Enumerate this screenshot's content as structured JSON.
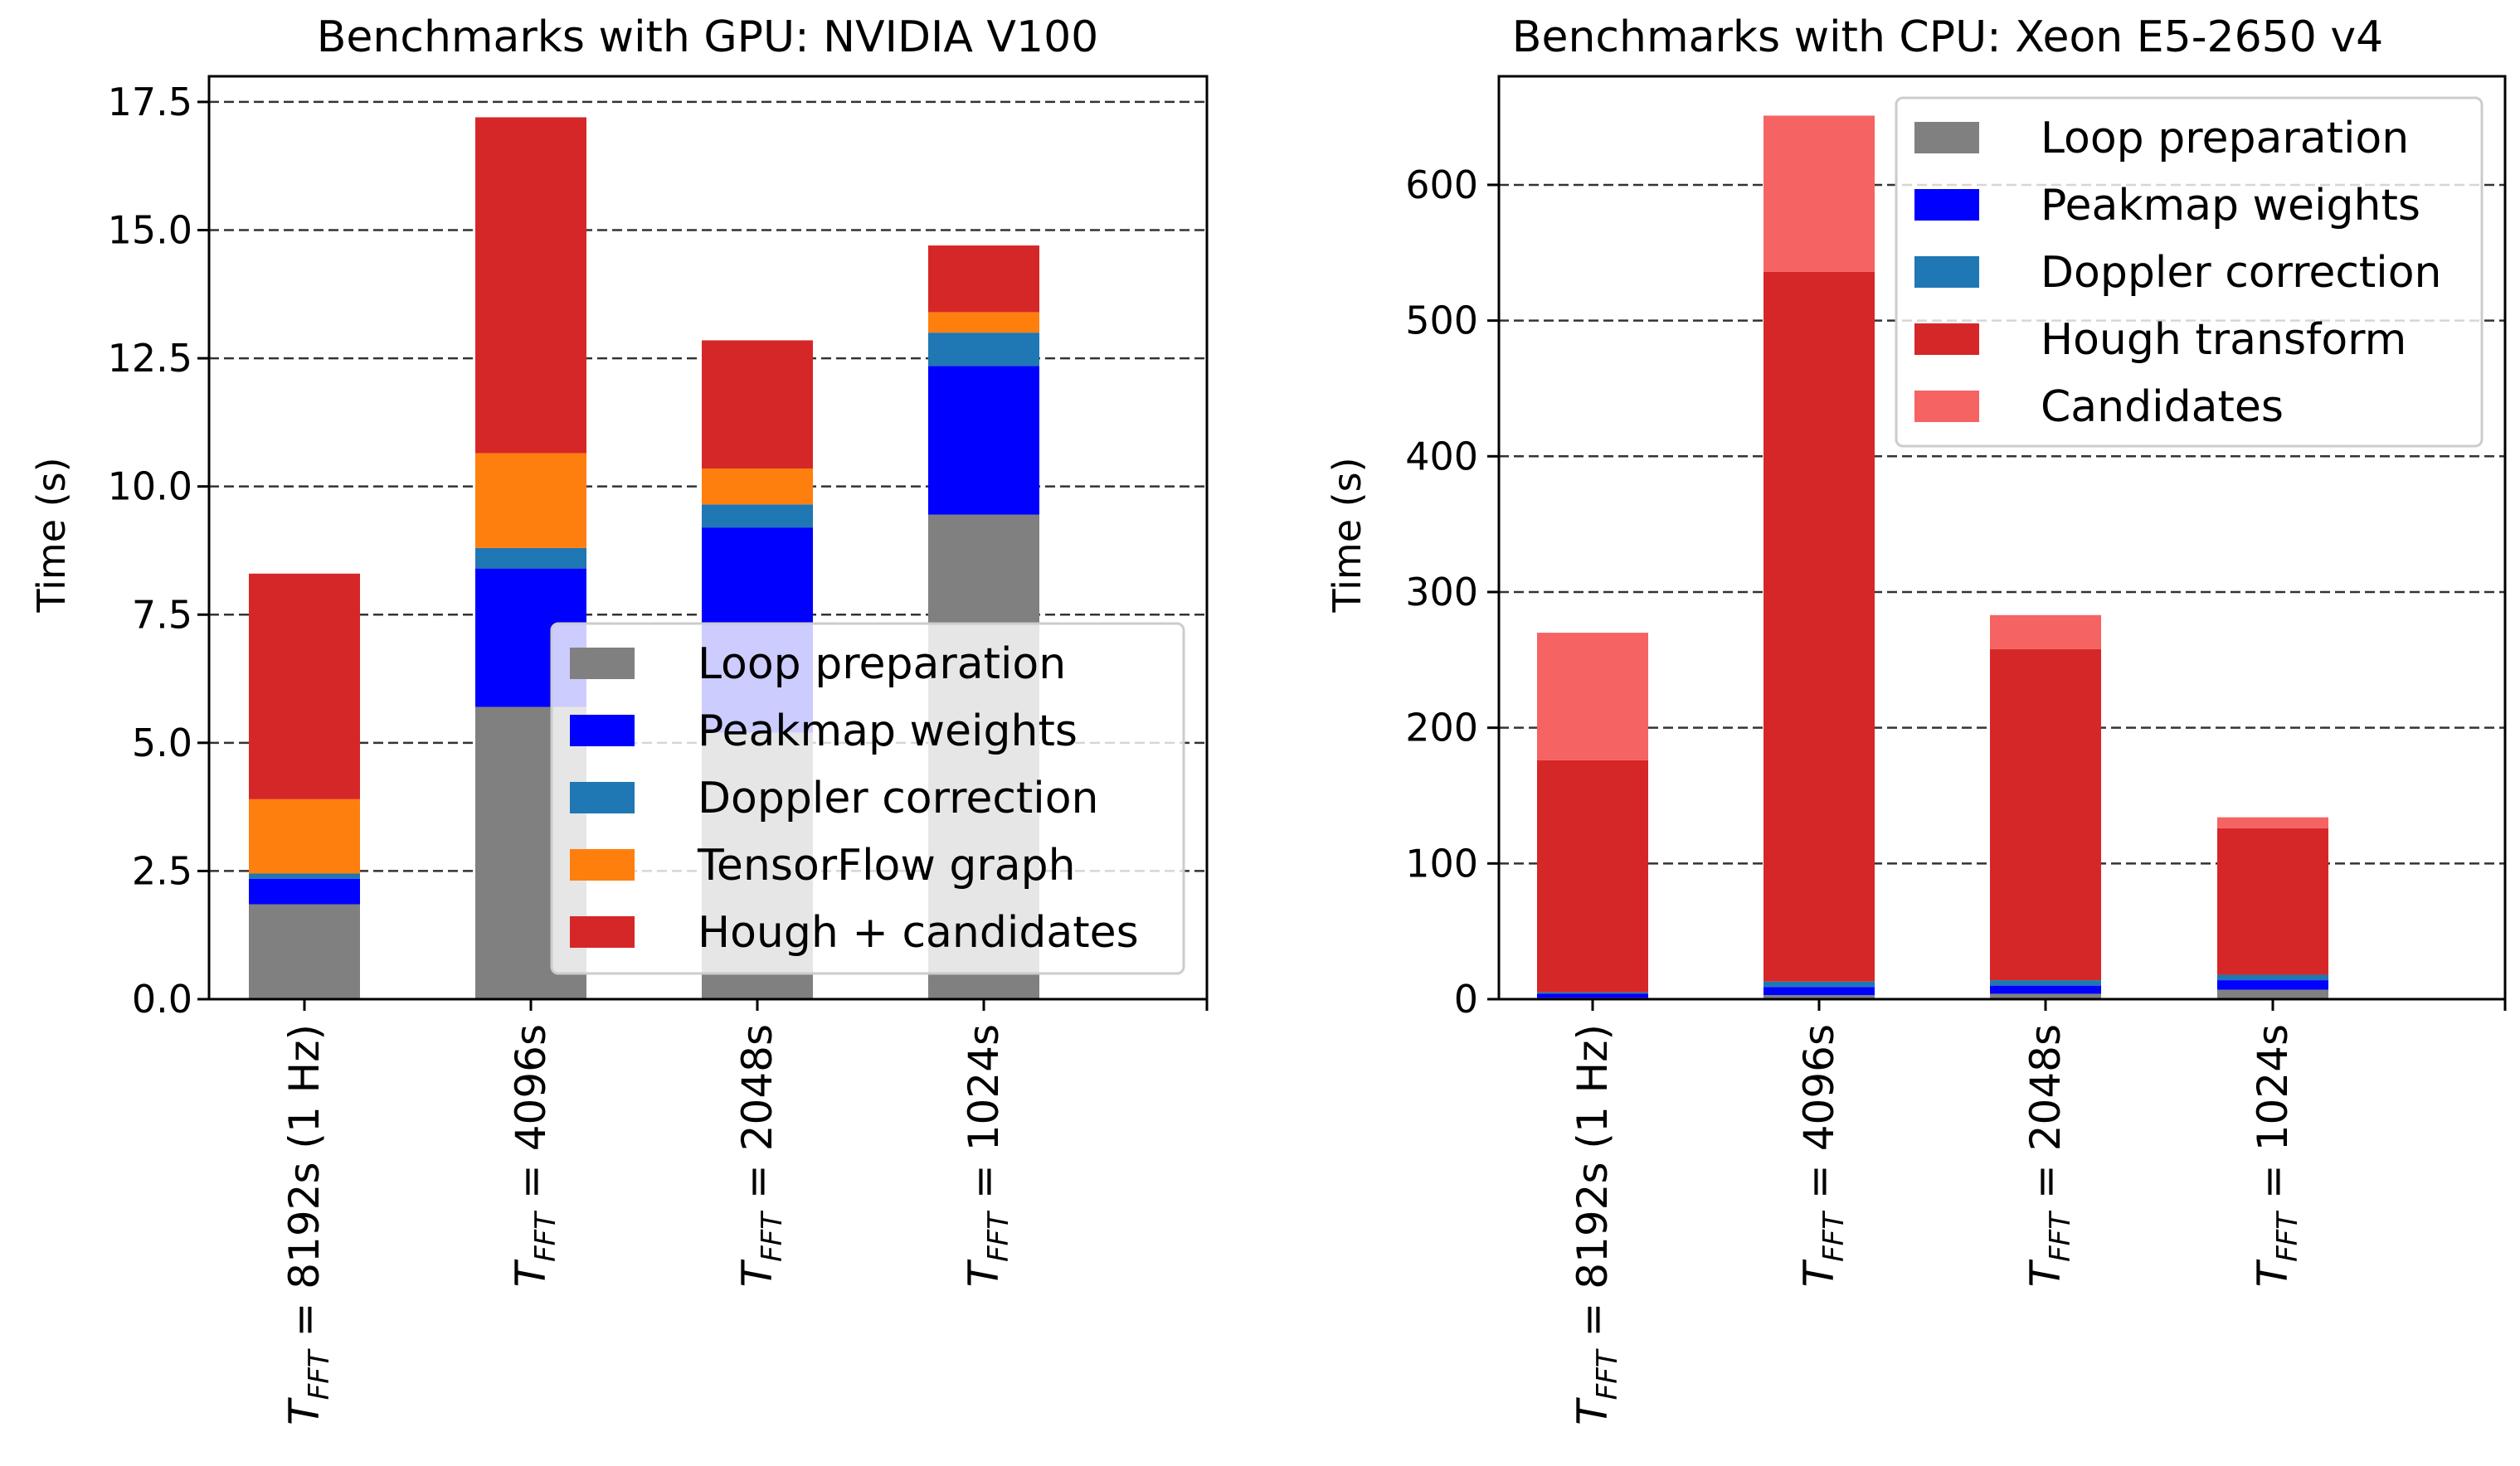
{
  "chart_data": [
    {
      "type": "bar",
      "stacked": true,
      "title": "Benchmarks with GPU: NVIDIA V100",
      "xlabel": "",
      "ylabel": "Time (s)",
      "ylim": [
        0,
        18.0
      ],
      "yticks": [
        "0.0",
        "2.5",
        "5.0",
        "7.5",
        "10.0",
        "12.5",
        "15.0",
        "17.5"
      ],
      "grid": true,
      "legend_loc": "lower-right",
      "categories": [
        {
          "prefix": "T",
          "sub": "FFT",
          "text": " = 8192s (1 Hz)"
        },
        {
          "prefix": "T",
          "sub": "FFT",
          "text": " = 4096s"
        },
        {
          "prefix": "T",
          "sub": "FFT",
          "text": " = 2048s"
        },
        {
          "prefix": "T",
          "sub": "FFT",
          "text": " = 1024s"
        }
      ],
      "series": [
        {
          "name": "Loop preparation",
          "color": "#808080",
          "values": [
            1.85,
            5.7,
            5.2,
            9.45
          ]
        },
        {
          "name": "Peakmap weights",
          "color": "#0000ff",
          "values": [
            0.5,
            2.7,
            4.0,
            2.9
          ]
        },
        {
          "name": "Doppler correction",
          "color": "#1f77b4",
          "values": [
            0.1,
            0.4,
            0.45,
            0.65
          ]
        },
        {
          "name": "TensorFlow graph",
          "color": "#ff7f0e",
          "values": [
            1.45,
            1.85,
            0.7,
            0.4
          ]
        },
        {
          "name": "Hough + candidates",
          "color": "#d62728",
          "values": [
            4.4,
            6.55,
            2.5,
            1.3
          ]
        }
      ]
    },
    {
      "type": "bar",
      "stacked": true,
      "title": "Benchmarks with CPU: Xeon E5-2650 v4",
      "xlabel": "",
      "ylabel": "Time (s)",
      "ylim": [
        0,
        680
      ],
      "yticks": [
        "0",
        "100",
        "200",
        "300",
        "400",
        "500",
        "600"
      ],
      "grid": true,
      "legend_loc": "upper-right",
      "categories": [
        {
          "prefix": "T",
          "sub": "FFT",
          "text": " = 8192s (1 Hz)"
        },
        {
          "prefix": "T",
          "sub": "FFT",
          "text": " = 4096s"
        },
        {
          "prefix": "T",
          "sub": "FFT",
          "text": " = 2048s"
        },
        {
          "prefix": "T",
          "sub": "FFT",
          "text": " = 1024s"
        }
      ],
      "series": [
        {
          "name": "Loop preparation",
          "color": "#808080",
          "values": [
            1,
            3,
            4,
            7
          ]
        },
        {
          "name": "Peakmap weights",
          "color": "#0000ff",
          "values": [
            3,
            6,
            6,
            7
          ]
        },
        {
          "name": "Doppler correction",
          "color": "#1f77b4",
          "values": [
            1,
            4,
            4,
            4
          ]
        },
        {
          "name": "Hough transform",
          "color": "#d62728",
          "values": [
            171,
            523,
            244,
            108
          ]
        },
        {
          "name": "Candidates",
          "color": "#f66363",
          "values": [
            94,
            115,
            25,
            8
          ]
        }
      ]
    }
  ]
}
